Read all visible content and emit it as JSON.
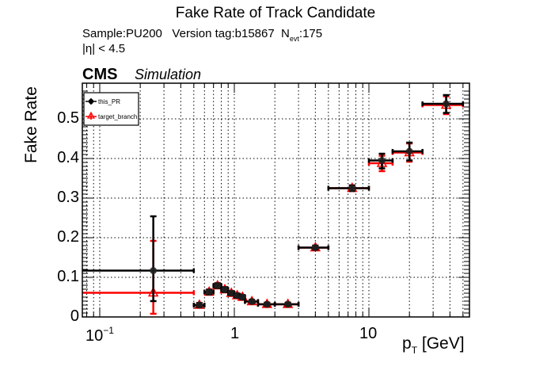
{
  "header": {
    "title": "Fake Rate of Track Candidate",
    "sample_label": "Sample:PU200",
    "version_label": "Version tag:b15867",
    "nevt_prefix": "N",
    "nevt_sub": "evt",
    "nevt_value": ":175",
    "eta_cut": "|η| < 4.5",
    "cms_label": "CMS",
    "simulation_label": "Simulation"
  },
  "axes": {
    "ylabel": "Fake Rate",
    "xlabel_main": "p",
    "xlabel_sub": "T",
    "xlabel_unit": " [GeV]",
    "yticks": [
      "0",
      "0.1",
      "0.2",
      "0.3",
      "0.4",
      "0.5"
    ],
    "xticks": [
      {
        "base": "10",
        "exp": "−1"
      },
      {
        "base": "1",
        "exp": ""
      },
      {
        "base": "10",
        "exp": ""
      }
    ]
  },
  "legend": {
    "items": [
      {
        "label": "this_PR",
        "color": "#000000",
        "marker": "filled-circle"
      },
      {
        "label": "target_branch",
        "color": "#ff0000",
        "marker": "open-triangle"
      }
    ]
  },
  "colors": {
    "this_PR": "#000000",
    "target_branch": "#ff0000",
    "grid": "#000000",
    "frame": "#000000"
  },
  "chart_data": {
    "type": "scatter",
    "title": "Fake Rate of Track Candidate",
    "subtitle": "Sample:PU200   Version tag:b15867  N_evt:175   |η| < 4.5",
    "annotations": [
      "CMS Simulation"
    ],
    "xlabel": "p_T [GeV]",
    "ylabel": "Fake Rate",
    "xscale": "log",
    "xlim": [
      0.074,
      56
    ],
    "ylim": [
      0,
      0.58
    ],
    "grid": true,
    "legend_position": "upper-left",
    "series": [
      {
        "name": "this_PR",
        "marker": "filled-circle",
        "color": "#000000",
        "points": [
          {
            "x": 0.25,
            "xlo": 0.0,
            "xhi": 0.5,
            "y": 0.117,
            "ylo": 0.04,
            "yhi": 0.254
          },
          {
            "x": 0.55,
            "xlo": 0.5,
            "xhi": 0.6,
            "y": 0.03,
            "ylo": 0.025,
            "yhi": 0.035
          },
          {
            "x": 0.65,
            "xlo": 0.6,
            "xhi": 0.7,
            "y": 0.063,
            "ylo": 0.057,
            "yhi": 0.069
          },
          {
            "x": 0.75,
            "xlo": 0.7,
            "xhi": 0.8,
            "y": 0.079,
            "ylo": 0.073,
            "yhi": 0.085
          },
          {
            "x": 0.85,
            "xlo": 0.8,
            "xhi": 0.9,
            "y": 0.069,
            "ylo": 0.063,
            "yhi": 0.075
          },
          {
            "x": 0.95,
            "xlo": 0.9,
            "xhi": 1.0,
            "y": 0.06,
            "ylo": 0.055,
            "yhi": 0.065
          },
          {
            "x": 1.05,
            "xlo": 1.0,
            "xhi": 1.1,
            "y": 0.054,
            "ylo": 0.049,
            "yhi": 0.059
          },
          {
            "x": 1.15,
            "xlo": 1.1,
            "xhi": 1.2,
            "y": 0.05,
            "ylo": 0.045,
            "yhi": 0.055
          },
          {
            "x": 1.35,
            "xlo": 1.2,
            "xhi": 1.5,
            "y": 0.039,
            "ylo": 0.035,
            "yhi": 0.043
          },
          {
            "x": 1.75,
            "xlo": 1.5,
            "xhi": 2.0,
            "y": 0.032,
            "ylo": 0.028,
            "yhi": 0.036
          },
          {
            "x": 2.5,
            "xlo": 2.0,
            "xhi": 3.0,
            "y": 0.032,
            "ylo": 0.028,
            "yhi": 0.036
          },
          {
            "x": 4.0,
            "xlo": 3.0,
            "xhi": 5.0,
            "y": 0.175,
            "ylo": 0.17,
            "yhi": 0.18
          },
          {
            "x": 7.5,
            "xlo": 5.0,
            "xhi": 10.0,
            "y": 0.325,
            "ylo": 0.318,
            "yhi": 0.332
          },
          {
            "x": 12.5,
            "xlo": 10.0,
            "xhi": 15.0,
            "y": 0.395,
            "ylo": 0.375,
            "yhi": 0.412
          },
          {
            "x": 20.0,
            "xlo": 15.0,
            "xhi": 25.0,
            "y": 0.418,
            "ylo": 0.395,
            "yhi": 0.44
          },
          {
            "x": 37.5,
            "xlo": 25.0,
            "xhi": 50.0,
            "y": 0.538,
            "ylo": 0.515,
            "yhi": 0.56
          }
        ]
      },
      {
        "name": "target_branch",
        "marker": "open-triangle",
        "color": "#ff0000",
        "points": [
          {
            "x": 0.25,
            "xlo": 0.0,
            "xhi": 0.5,
            "y": 0.061,
            "ylo": 0.008,
            "yhi": 0.192
          },
          {
            "x": 0.55,
            "xlo": 0.5,
            "xhi": 0.6,
            "y": 0.03,
            "ylo": 0.025,
            "yhi": 0.035
          },
          {
            "x": 0.65,
            "xlo": 0.6,
            "xhi": 0.7,
            "y": 0.063,
            "ylo": 0.057,
            "yhi": 0.069
          },
          {
            "x": 0.75,
            "xlo": 0.7,
            "xhi": 0.8,
            "y": 0.079,
            "ylo": 0.073,
            "yhi": 0.085
          },
          {
            "x": 0.85,
            "xlo": 0.8,
            "xhi": 0.9,
            "y": 0.069,
            "ylo": 0.063,
            "yhi": 0.075
          },
          {
            "x": 0.95,
            "xlo": 0.9,
            "xhi": 1.0,
            "y": 0.06,
            "ylo": 0.055,
            "yhi": 0.065
          },
          {
            "x": 1.05,
            "xlo": 1.0,
            "xhi": 1.1,
            "y": 0.054,
            "ylo": 0.049,
            "yhi": 0.059
          },
          {
            "x": 1.15,
            "xlo": 1.1,
            "xhi": 1.2,
            "y": 0.05,
            "ylo": 0.045,
            "yhi": 0.055
          },
          {
            "x": 1.35,
            "xlo": 1.2,
            "xhi": 1.5,
            "y": 0.039,
            "ylo": 0.035,
            "yhi": 0.043
          },
          {
            "x": 1.75,
            "xlo": 1.5,
            "xhi": 2.0,
            "y": 0.032,
            "ylo": 0.028,
            "yhi": 0.036
          },
          {
            "x": 2.5,
            "xlo": 2.0,
            "xhi": 3.0,
            "y": 0.032,
            "ylo": 0.028,
            "yhi": 0.036
          },
          {
            "x": 4.0,
            "xlo": 3.0,
            "xhi": 5.0,
            "y": 0.175,
            "ylo": 0.17,
            "yhi": 0.18
          },
          {
            "x": 7.5,
            "xlo": 5.0,
            "xhi": 10.0,
            "y": 0.325,
            "ylo": 0.318,
            "yhi": 0.332
          },
          {
            "x": 12.5,
            "xlo": 10.0,
            "xhi": 15.0,
            "y": 0.388,
            "ylo": 0.368,
            "yhi": 0.407
          },
          {
            "x": 20.0,
            "xlo": 15.0,
            "xhi": 25.0,
            "y": 0.415,
            "ylo": 0.392,
            "yhi": 0.438
          },
          {
            "x": 37.5,
            "xlo": 25.0,
            "xhi": 50.0,
            "y": 0.535,
            "ylo": 0.512,
            "yhi": 0.557
          }
        ]
      }
    ]
  }
}
